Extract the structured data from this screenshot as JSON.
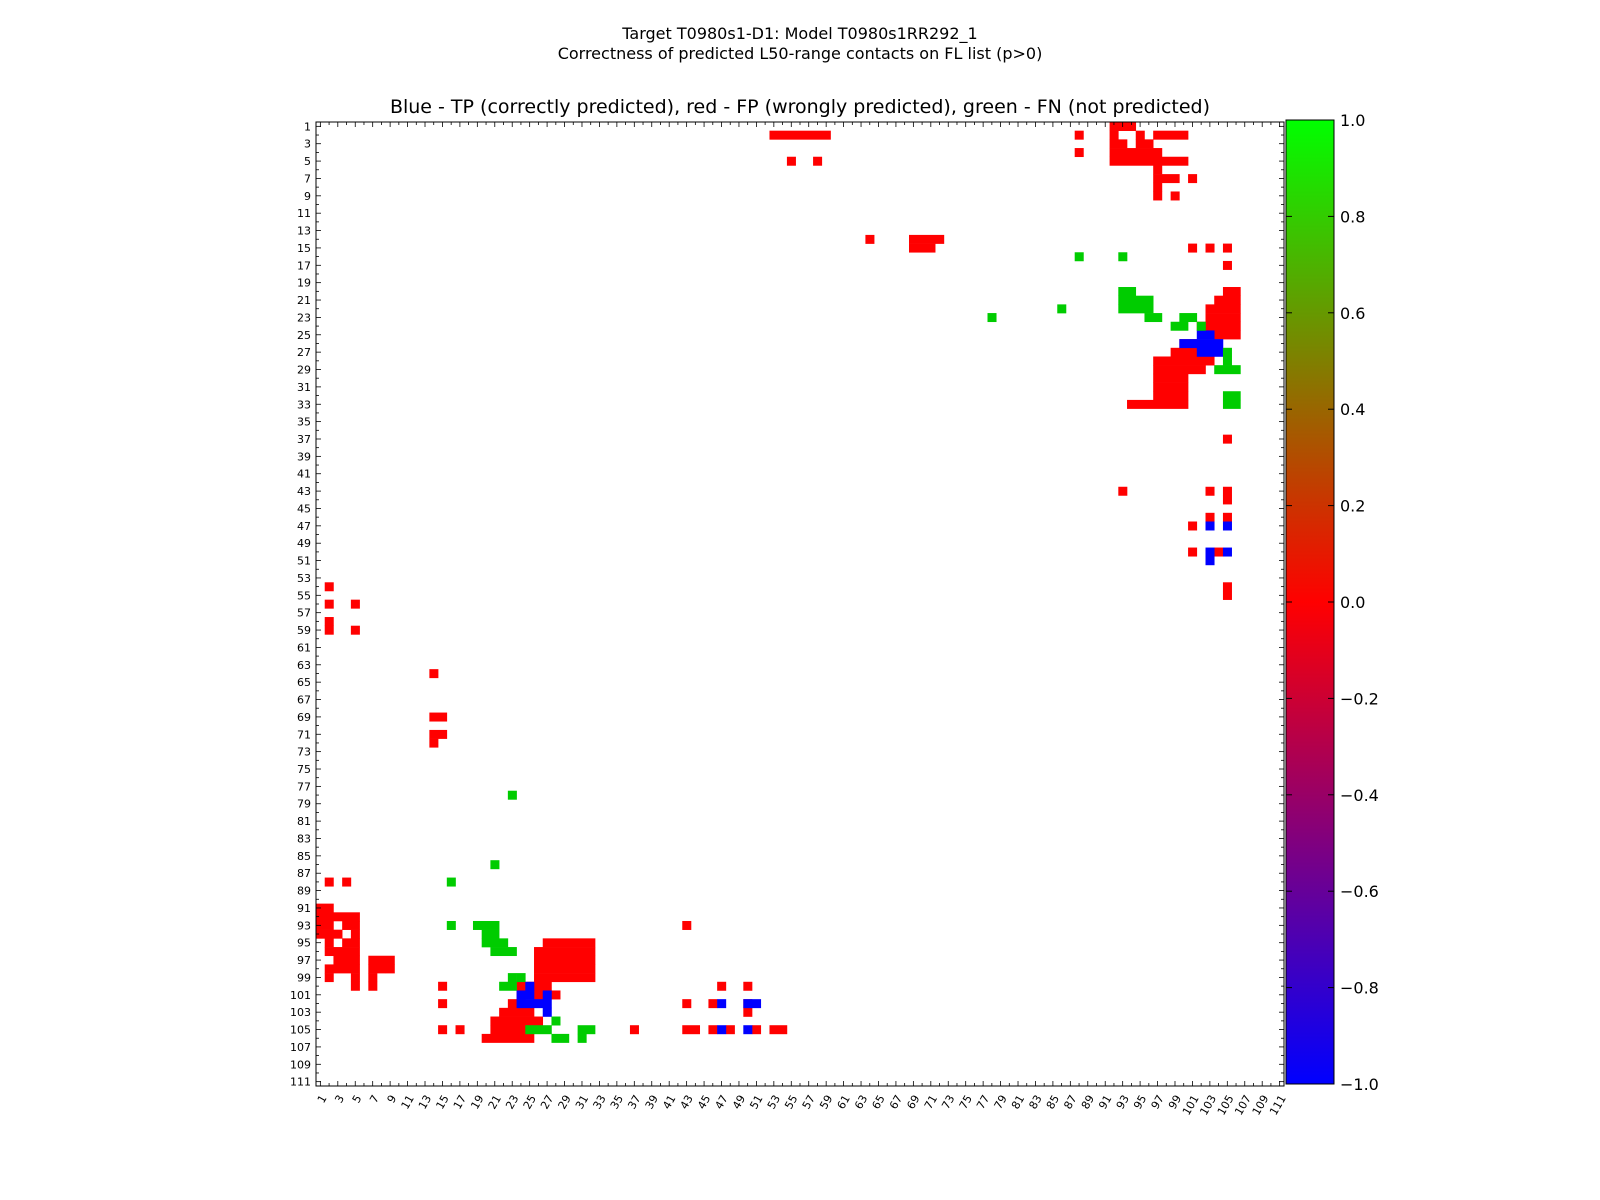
{
  "figure": {
    "suptitle_line1": "Target T0980s1-D1: Model T0980s1RR292_1",
    "suptitle_line2": "Correctness of predicted L50-range contacts on FL list (p>0)"
  },
  "chart_data": {
    "type": "heatmap",
    "title": "Blue - TP (correctly predicted), red - FP (wrongly predicted), green - FN (not predicted)",
    "xlabel": "",
    "ylabel": "",
    "n_residues": 111,
    "x_ticks": [
      1,
      3,
      5,
      7,
      9,
      11,
      13,
      15,
      17,
      19,
      21,
      23,
      25,
      27,
      29,
      31,
      33,
      35,
      37,
      39,
      41,
      43,
      45,
      47,
      49,
      51,
      53,
      55,
      57,
      59,
      61,
      63,
      65,
      67,
      69,
      71,
      73,
      75,
      77,
      79,
      81,
      83,
      85,
      87,
      89,
      91,
      93,
      95,
      97,
      99,
      101,
      103,
      105,
      107,
      109,
      111
    ],
    "y_ticks": [
      1,
      3,
      5,
      7,
      9,
      11,
      13,
      15,
      17,
      19,
      21,
      23,
      25,
      27,
      29,
      31,
      33,
      35,
      37,
      39,
      41,
      43,
      45,
      47,
      49,
      51,
      53,
      55,
      57,
      59,
      61,
      63,
      65,
      67,
      69,
      71,
      73,
      75,
      77,
      79,
      81,
      83,
      85,
      87,
      89,
      91,
      93,
      95,
      97,
      99,
      101,
      103,
      105,
      107,
      109,
      111
    ],
    "legend": "none",
    "grid": false,
    "value_scale": {
      "TP": -1.0,
      "FP": 0.0,
      "FN": 1.0
    },
    "colors": {
      "TP": "#0000ff",
      "FP": "#ff0000",
      "FN": "#00cc00"
    },
    "colorbar": {
      "min": -1.0,
      "max": 1.0,
      "ticks": [
        "1.0",
        "0.8",
        "0.6",
        "0.4",
        "0.2",
        "0.0",
        "−0.2",
        "−0.4",
        "−0.6",
        "−0.8",
        "−1.0"
      ],
      "tick_values": [
        1.0,
        0.8,
        0.6,
        0.4,
        0.2,
        0.0,
        -0.2,
        -0.4,
        -0.6,
        -0.8,
        -1.0
      ],
      "stops": [
        {
          "v": -1.0,
          "c": "#0000ff"
        },
        {
          "v": 0.0,
          "c": "#ff0000"
        },
        {
          "v": 1.0,
          "c": "#00ff00"
        }
      ]
    },
    "upper_cells": {
      "FP": [
        [
          1,
          92,
          94
        ],
        [
          2,
          53,
          59
        ],
        [
          2,
          88,
          88
        ],
        [
          2,
          92,
          92
        ],
        [
          2,
          95,
          95
        ],
        [
          2,
          97,
          100
        ],
        [
          3,
          92,
          93
        ],
        [
          3,
          95,
          96
        ],
        [
          4,
          88,
          88
        ],
        [
          4,
          92,
          97
        ],
        [
          5,
          55,
          55
        ],
        [
          5,
          58,
          58
        ],
        [
          5,
          92,
          100
        ],
        [
          6,
          97,
          97
        ],
        [
          7,
          97,
          99
        ],
        [
          7,
          101,
          101
        ],
        [
          8,
          97,
          97
        ],
        [
          9,
          97,
          97
        ],
        [
          9,
          99,
          99
        ],
        [
          14,
          64,
          64
        ],
        [
          14,
          69,
          72
        ],
        [
          15,
          69,
          71
        ],
        [
          15,
          101,
          101
        ],
        [
          15,
          103,
          103
        ],
        [
          15,
          105,
          105
        ],
        [
          17,
          105,
          105
        ],
        [
          20,
          105,
          106
        ],
        [
          21,
          104,
          106
        ],
        [
          22,
          103,
          106
        ],
        [
          23,
          103,
          106
        ],
        [
          24,
          102,
          103
        ],
        [
          24,
          104,
          106
        ],
        [
          25,
          104,
          106
        ],
        [
          26,
          100,
          101
        ],
        [
          27,
          99,
          103
        ],
        [
          28,
          97,
          103
        ],
        [
          29,
          97,
          102
        ],
        [
          30,
          97,
          100
        ],
        [
          31,
          97,
          100
        ],
        [
          32,
          97,
          100
        ],
        [
          33,
          94,
          100
        ],
        [
          37,
          105,
          105
        ],
        [
          43,
          93,
          93
        ],
        [
          43,
          103,
          103
        ],
        [
          43,
          105,
          105
        ],
        [
          44,
          105,
          105
        ],
        [
          46,
          103,
          103
        ],
        [
          46,
          105,
          105
        ],
        [
          47,
          101,
          101
        ],
        [
          50,
          101,
          101
        ],
        [
          50,
          104,
          104
        ],
        [
          54,
          105,
          105
        ],
        [
          55,
          105,
          105
        ]
      ],
      "TP": [
        [
          25,
          102,
          103
        ],
        [
          26,
          100,
          104
        ],
        [
          27,
          102,
          104
        ],
        [
          47,
          103,
          103
        ],
        [
          47,
          105,
          105
        ],
        [
          50,
          103,
          103
        ],
        [
          50,
          105,
          105
        ],
        [
          51,
          103,
          103
        ]
      ],
      "FN": [
        [
          16,
          88,
          88
        ],
        [
          16,
          93,
          93
        ],
        [
          20,
          93,
          94
        ],
        [
          21,
          93,
          96
        ],
        [
          22,
          86,
          86
        ],
        [
          22,
          93,
          96
        ],
        [
          23,
          78,
          78
        ],
        [
          23,
          96,
          97
        ],
        [
          23,
          100,
          101
        ],
        [
          24,
          99,
          100
        ],
        [
          24,
          102,
          102
        ],
        [
          27,
          105,
          105
        ],
        [
          28,
          105,
          105
        ],
        [
          29,
          104,
          106
        ],
        [
          32,
          105,
          106
        ],
        [
          33,
          105,
          106
        ]
      ]
    },
    "lower_cells": {
      "FP": [
        [
          54,
          2,
          2
        ],
        [
          56,
          2,
          2
        ],
        [
          56,
          5,
          5
        ],
        [
          58,
          2,
          2
        ],
        [
          59,
          2,
          2
        ],
        [
          59,
          5,
          5
        ],
        [
          64,
          14,
          14
        ],
        [
          69,
          14,
          15
        ],
        [
          71,
          14,
          15
        ],
        [
          72,
          14,
          14
        ],
        [
          88,
          2,
          2
        ],
        [
          88,
          4,
          4
        ],
        [
          91,
          1,
          2
        ],
        [
          92,
          1,
          5
        ],
        [
          93,
          1,
          2
        ],
        [
          93,
          4,
          5
        ],
        [
          93,
          43,
          43
        ],
        [
          94,
          1,
          3
        ],
        [
          94,
          5,
          5
        ],
        [
          95,
          2,
          2
        ],
        [
          95,
          4,
          5
        ],
        [
          95,
          27,
          32
        ],
        [
          96,
          2,
          5
        ],
        [
          96,
          26,
          32
        ],
        [
          97,
          3,
          5
        ],
        [
          97,
          7,
          9
        ],
        [
          97,
          26,
          32
        ],
        [
          98,
          2,
          5
        ],
        [
          98,
          7,
          8
        ],
        [
          98,
          26,
          32
        ],
        [
          98,
          9,
          9
        ],
        [
          99,
          2,
          2
        ],
        [
          99,
          5,
          5
        ],
        [
          99,
          7,
          7
        ],
        [
          99,
          26,
          32
        ],
        [
          100,
          5,
          5
        ],
        [
          100,
          7,
          7
        ],
        [
          100,
          15,
          15
        ],
        [
          100,
          24,
          27
        ],
        [
          100,
          47,
          47
        ],
        [
          100,
          50,
          50
        ],
        [
          101,
          24,
          24
        ],
        [
          101,
          26,
          28
        ],
        [
          102,
          15,
          15
        ],
        [
          102,
          23,
          24
        ],
        [
          102,
          43,
          43
        ],
        [
          102,
          46,
          46
        ],
        [
          102,
          50,
          50
        ],
        [
          103,
          22,
          25
        ],
        [
          103,
          50,
          50
        ],
        [
          104,
          21,
          26
        ],
        [
          105,
          15,
          15
        ],
        [
          105,
          17,
          17
        ],
        [
          105,
          21,
          25
        ],
        [
          105,
          37,
          37
        ],
        [
          105,
          43,
          44
        ],
        [
          105,
          46,
          46
        ],
        [
          105,
          48,
          48
        ],
        [
          105,
          51,
          51
        ],
        [
          105,
          53,
          54
        ],
        [
          106,
          20,
          25
        ]
      ],
      "TP": [
        [
          100,
          25,
          25
        ],
        [
          101,
          24,
          25
        ],
        [
          101,
          27,
          27
        ],
        [
          102,
          24,
          27
        ],
        [
          102,
          47,
          47
        ],
        [
          102,
          50,
          51
        ],
        [
          103,
          27,
          27
        ],
        [
          105,
          47,
          47
        ],
        [
          105,
          50,
          50
        ]
      ],
      "FN": [
        [
          78,
          23,
          23
        ],
        [
          86,
          21,
          21
        ],
        [
          88,
          16,
          16
        ],
        [
          93,
          16,
          16
        ],
        [
          93,
          19,
          21
        ],
        [
          94,
          20,
          21
        ],
        [
          95,
          20,
          22
        ],
        [
          96,
          21,
          23
        ],
        [
          99,
          23,
          23
        ],
        [
          99,
          24,
          24
        ],
        [
          100,
          22,
          23
        ],
        [
          104,
          28,
          28
        ],
        [
          105,
          25,
          27
        ],
        [
          105,
          31,
          32
        ],
        [
          106,
          28,
          29
        ],
        [
          106,
          31,
          31
        ]
      ]
    }
  }
}
